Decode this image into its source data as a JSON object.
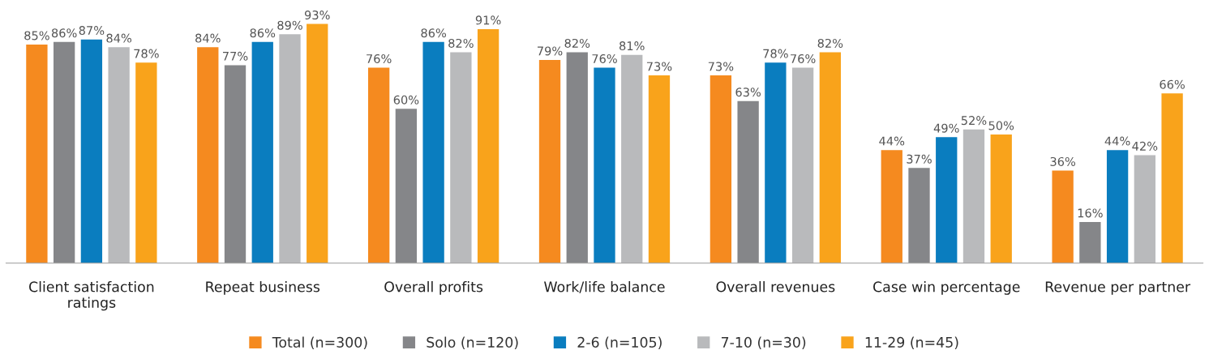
{
  "chart_data": {
    "type": "bar",
    "categories": [
      "Client satisfaction\nratings",
      "Repeat business",
      "Overall profits",
      "Work/life balance",
      "Overall revenues",
      "Case win percentage",
      "Revenue per partner"
    ],
    "series": [
      {
        "name": "Total (n=300)",
        "color": "#f58a1f",
        "values": [
          85,
          84,
          76,
          79,
          73,
          44,
          36
        ],
        "value_labels": [
          "85%",
          "84%",
          "76%",
          "79%",
          "73%",
          "44%",
          "36%"
        ]
      },
      {
        "name": "Solo (n=120)",
        "color": "#858689",
        "values": [
          86,
          77,
          60,
          82,
          63,
          37,
          16
        ],
        "value_labels": [
          "86%",
          "77%",
          "60%",
          "82%",
          "63%",
          "37%",
          "16%"
        ]
      },
      {
        "name": "2-6 (n=105)",
        "color": "#0a7dbf",
        "values": [
          87,
          86,
          86,
          76,
          78,
          49,
          44
        ],
        "value_labels": [
          "87%",
          "86%",
          "86%",
          "76%",
          "78%",
          "49%",
          "44%"
        ]
      },
      {
        "name": "7-10 (n=30)",
        "color": "#b9babc",
        "values": [
          84,
          89,
          82,
          81,
          76,
          52,
          42
        ],
        "value_labels": [
          "84%",
          "89%",
          "82%",
          "81%",
          "76%",
          "52%",
          "42%"
        ]
      },
      {
        "name": "11-29 (n=45)",
        "color": "#f9a31b",
        "values": [
          78,
          93,
          91,
          73,
          82,
          50,
          66
        ],
        "value_labels": [
          "78%",
          "93%",
          "91%",
          "73%",
          "82%",
          "50%",
          "66%"
        ]
      }
    ],
    "legend": "bottom",
    "grid": false
  }
}
